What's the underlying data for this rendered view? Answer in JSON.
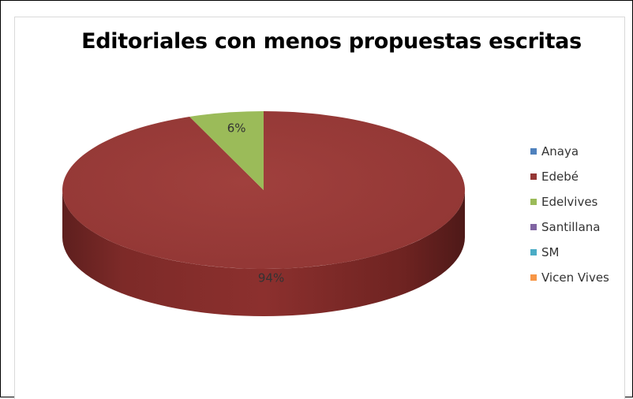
{
  "chart_data": {
    "type": "pie",
    "title": "Editoriales con menos propuestas escritas",
    "categories": [
      "Anaya",
      "Edebé",
      "Edelvives",
      "Santillana",
      "SM",
      "Vicen Vives"
    ],
    "values": [
      0,
      94,
      6,
      0,
      0,
      0
    ],
    "data_labels": [
      "",
      "94%",
      "6%",
      "",
      "",
      ""
    ],
    "colors": [
      "#4f81bd",
      "#953735",
      "#9bbb59",
      "#8064a2",
      "#4bacc6",
      "#f79646"
    ],
    "legend_position": "right",
    "style": "3d"
  }
}
